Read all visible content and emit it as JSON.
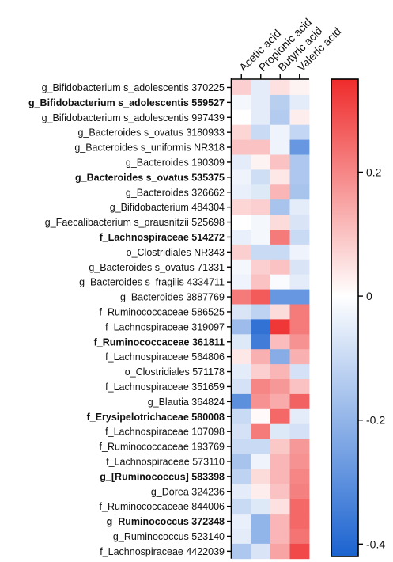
{
  "chart_data": {
    "type": "heatmap",
    "columns": [
      "Acetic acid",
      "Propionic acid",
      "Butyric acid",
      "Valeric acid"
    ],
    "rows": [
      {
        "label": "g_Bifidobacterium s_adolescentis 370225",
        "bold": false,
        "values": [
          0.08,
          -0.05,
          0.05,
          0.02
        ]
      },
      {
        "label": "g_Bifidobacterium s_adolescentis 559527",
        "bold": true,
        "values": [
          -0.02,
          -0.05,
          -0.13,
          -0.05
        ]
      },
      {
        "label": "g_Bifidobacterium s_adolescentis 997439",
        "bold": false,
        "values": [
          0.0,
          -0.05,
          -0.14,
          0.03
        ]
      },
      {
        "label": "g_Bacteroides s_ovatus 3180933",
        "bold": false,
        "values": [
          0.07,
          -0.1,
          -0.03,
          -0.11
        ]
      },
      {
        "label": "g_Bacteroides s_uniformis NR318",
        "bold": false,
        "values": [
          0.1,
          0.1,
          -0.03,
          -0.28
        ]
      },
      {
        "label": "g_Bacteroides 190309",
        "bold": false,
        "values": [
          -0.05,
          0.02,
          0.1,
          -0.15
        ]
      },
      {
        "label": "g_Bacteroides s_ovatus 535375",
        "bold": true,
        "values": [
          -0.03,
          -0.09,
          0.04,
          -0.15
        ]
      },
      {
        "label": "g_Bacteroides 326662",
        "bold": false,
        "values": [
          -0.04,
          -0.06,
          0.12,
          -0.16
        ]
      },
      {
        "label": "g_Bifidobacterium 484304",
        "bold": false,
        "values": [
          0.07,
          0.08,
          -0.16,
          -0.05
        ]
      },
      {
        "label": "g_Faecalibacterium s_prausnitzii 525698",
        "bold": false,
        "values": [
          0.0,
          -0.02,
          0.06,
          -0.07
        ]
      },
      {
        "label": "f_Lachnospiraceae 514272",
        "bold": true,
        "values": [
          -0.04,
          -0.02,
          0.22,
          -0.1
        ]
      },
      {
        "label": "o_Clostridiales NR343",
        "bold": false,
        "values": [
          0.08,
          -0.1,
          -0.1,
          -0.03
        ]
      },
      {
        "label": "g_Bacteroides s_ovatus 71331",
        "bold": false,
        "values": [
          -0.02,
          0.08,
          0.1,
          -0.07
        ]
      },
      {
        "label": "g_Bacteroides s_fragilis 4334711",
        "bold": false,
        "values": [
          -0.03,
          0.1,
          -0.01,
          -0.05
        ]
      },
      {
        "label": "g_Bacteroides 3887769",
        "bold": false,
        "values": [
          0.22,
          0.27,
          -0.28,
          -0.28
        ]
      },
      {
        "label": "f_Ruminococcaceae 586525",
        "bold": false,
        "values": [
          -0.07,
          -0.12,
          0.06,
          0.22
        ]
      },
      {
        "label": "f_Lachnospiraceae 319097",
        "bold": false,
        "values": [
          -0.18,
          -0.38,
          0.33,
          0.22
        ]
      },
      {
        "label": "f_Ruminococcaceae 361811",
        "bold": true,
        "values": [
          -0.06,
          -0.35,
          0.11,
          0.18
        ]
      },
      {
        "label": "f_Lachnospiraceae 564806",
        "bold": false,
        "values": [
          0.04,
          0.13,
          -0.22,
          0.13
        ]
      },
      {
        "label": "o_Clostridiales 571178",
        "bold": false,
        "values": [
          -0.05,
          0.08,
          0.12,
          -0.08
        ]
      },
      {
        "label": "f_Lachnospiraceae 351659",
        "bold": false,
        "values": [
          -0.08,
          0.2,
          0.17,
          0.1
        ]
      },
      {
        "label": "g_Blautia 364824",
        "bold": false,
        "values": [
          -0.3,
          0.18,
          0.14,
          0.26
        ]
      },
      {
        "label": "f_Erysipelotrichaceae 580008",
        "bold": true,
        "values": [
          -0.1,
          0.01,
          0.25,
          -0.05
        ]
      },
      {
        "label": "f_Lachnospiraceae 107098",
        "bold": false,
        "values": [
          -0.08,
          0.22,
          -0.06,
          -0.08
        ]
      },
      {
        "label": "f_Ruminococcaceae 193769",
        "bold": false,
        "values": [
          -0.1,
          -0.1,
          0.09,
          0.17
        ]
      },
      {
        "label": "f_Lachnospiraceae 573110",
        "bold": false,
        "values": [
          -0.16,
          -0.03,
          0.12,
          0.18
        ]
      },
      {
        "label": "g_[Ruminococcus] 583398",
        "bold": true,
        "values": [
          -0.12,
          0.06,
          0.12,
          0.2
        ]
      },
      {
        "label": "g_Dorea 324236",
        "bold": false,
        "values": [
          -0.05,
          0.03,
          0.1,
          0.21
        ]
      },
      {
        "label": "f_Ruminococcaceae 844006",
        "bold": false,
        "values": [
          -0.1,
          -0.06,
          0.05,
          0.25
        ]
      },
      {
        "label": "g_Ruminococcus 372348",
        "bold": true,
        "values": [
          -0.04,
          -0.2,
          0.12,
          0.25
        ]
      },
      {
        "label": "g_Ruminococcus 523140",
        "bold": false,
        "values": [
          -0.05,
          -0.2,
          0.12,
          0.23
        ]
      },
      {
        "label": "f_Lachnospiraceae 4422039",
        "bold": false,
        "values": [
          -0.15,
          -0.07,
          0.15,
          0.3
        ]
      }
    ],
    "colorbar": {
      "min": -0.42,
      "max": 0.35,
      "ticks": [
        0.2,
        0,
        -0.2,
        -0.4
      ],
      "tick_labels": [
        "0.2",
        "0",
        "-0.2",
        "-0.4"
      ],
      "colors": {
        "low": "#1b63d0",
        "mid": "#ffffff",
        "high": "#ef2b2b"
      }
    },
    "title": "",
    "xlabel": "",
    "ylabel": ""
  }
}
